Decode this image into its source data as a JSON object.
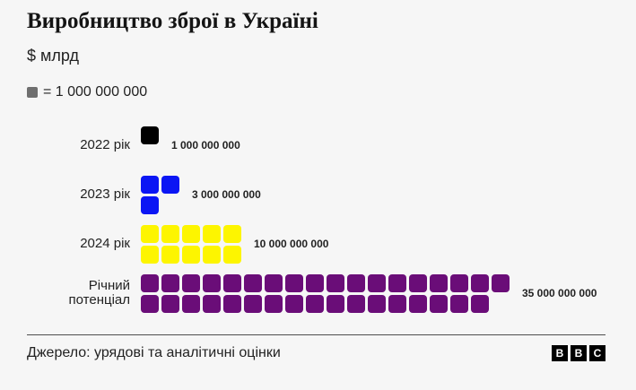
{
  "page": {
    "title": "Виробництво зброї в Україні",
    "subtitle": "$ млрд",
    "background_color": "#f6f6f6"
  },
  "legend": {
    "swatch_color": "#6f6f6f",
    "label": "= 1 000 000 000"
  },
  "chart_data": {
    "type": "pictogram",
    "title": "Виробництво зброї в Україні",
    "unit_label": "$ млрд",
    "square_value": 1000000000,
    "legend_text": "= 1 000 000 000",
    "squares_per_column": 2,
    "rows": [
      {
        "label": "2022 рік",
        "units": 1,
        "value": 1000000000,
        "value_label": "1 000 000 000",
        "color": "#000000"
      },
      {
        "label": "2023 рік",
        "units": 3,
        "value": 3000000000,
        "value_label": "3 000 000 000",
        "color": "#0b16f4"
      },
      {
        "label": "2024 рік",
        "units": 10,
        "value": 10000000000,
        "value_label": "10 000 000 000",
        "color": "#fdf500"
      },
      {
        "label": "Річний потенціал",
        "units": 35,
        "value": 35000000000,
        "value_label": "35 000 000 000",
        "color": "#6a0d78"
      }
    ]
  },
  "footer": {
    "source": "Джерело: урядові та аналітичні оцінки",
    "logo_letters": [
      "B",
      "B",
      "C"
    ]
  }
}
